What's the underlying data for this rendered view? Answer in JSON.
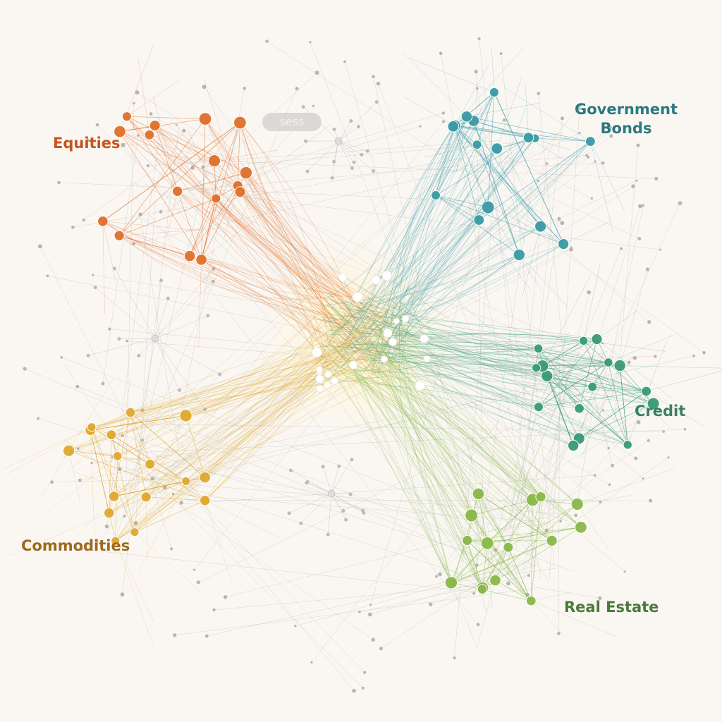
{
  "clusters": [
    {
      "label": "Equities",
      "color": "#e0702a",
      "label_color": "#c8541e"
    },
    {
      "label": "Government Bonds",
      "color": "#3a9aa6",
      "label_color": "#2a7a80"
    },
    {
      "label": "Credit",
      "color": "#3a9a78",
      "label_color": "#3a8060"
    },
    {
      "label": "Real Estate",
      "color": "#8ab84a",
      "label_color": "#4a7a3a"
    },
    {
      "label": "Commodities",
      "color": "#e0a830",
      "label_color": "#9a6a1e"
    }
  ],
  "blob_text": "sess",
  "hub_color": "#fff6d0",
  "peripheral_color": "#b8b4b0"
}
